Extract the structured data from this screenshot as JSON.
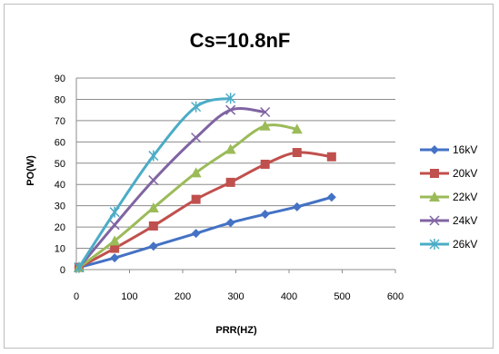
{
  "chart_data": {
    "type": "line",
    "title": "Cs=10.8nF",
    "xlabel": "PRR(HZ)",
    "ylabel": "PO(W)",
    "xlim": [
      0,
      600
    ],
    "ylim": [
      0,
      90
    ],
    "xticks": [
      0,
      100,
      200,
      300,
      400,
      500,
      600
    ],
    "yticks": [
      0,
      10,
      20,
      30,
      40,
      50,
      60,
      70,
      80,
      90
    ],
    "grid": "horizontal",
    "legend_position": "right",
    "smooth": true,
    "series": [
      {
        "name": "16kV",
        "color": "#4472C4",
        "marker": "diamond",
        "x": [
          5,
          72,
          145,
          225,
          290,
          355,
          415,
          480
        ],
        "y": [
          1,
          5.5,
          11,
          17,
          22,
          26,
          29.5,
          34
        ]
      },
      {
        "name": "20kV",
        "color": "#C0504D",
        "marker": "square",
        "x": [
          5,
          72,
          145,
          225,
          290,
          355,
          415,
          480
        ],
        "y": [
          1,
          10,
          20.5,
          33,
          41,
          49.5,
          55,
          53
        ]
      },
      {
        "name": "22kV",
        "color": "#9BBB59",
        "marker": "triangle",
        "x": [
          5,
          72,
          145,
          225,
          290,
          355,
          415
        ],
        "y": [
          1,
          13.5,
          29,
          45.5,
          56.5,
          67.5,
          66
        ]
      },
      {
        "name": "24kV",
        "color": "#8064A2",
        "marker": "x",
        "x": [
          5,
          72,
          145,
          225,
          290,
          355
        ],
        "y": [
          1,
          21,
          42,
          62,
          75,
          74
        ]
      },
      {
        "name": "26kV",
        "color": "#4BACC6",
        "marker": "star",
        "x": [
          5,
          72,
          145,
          225,
          290
        ],
        "y": [
          1,
          27,
          53.5,
          76.5,
          80.5
        ]
      }
    ]
  }
}
